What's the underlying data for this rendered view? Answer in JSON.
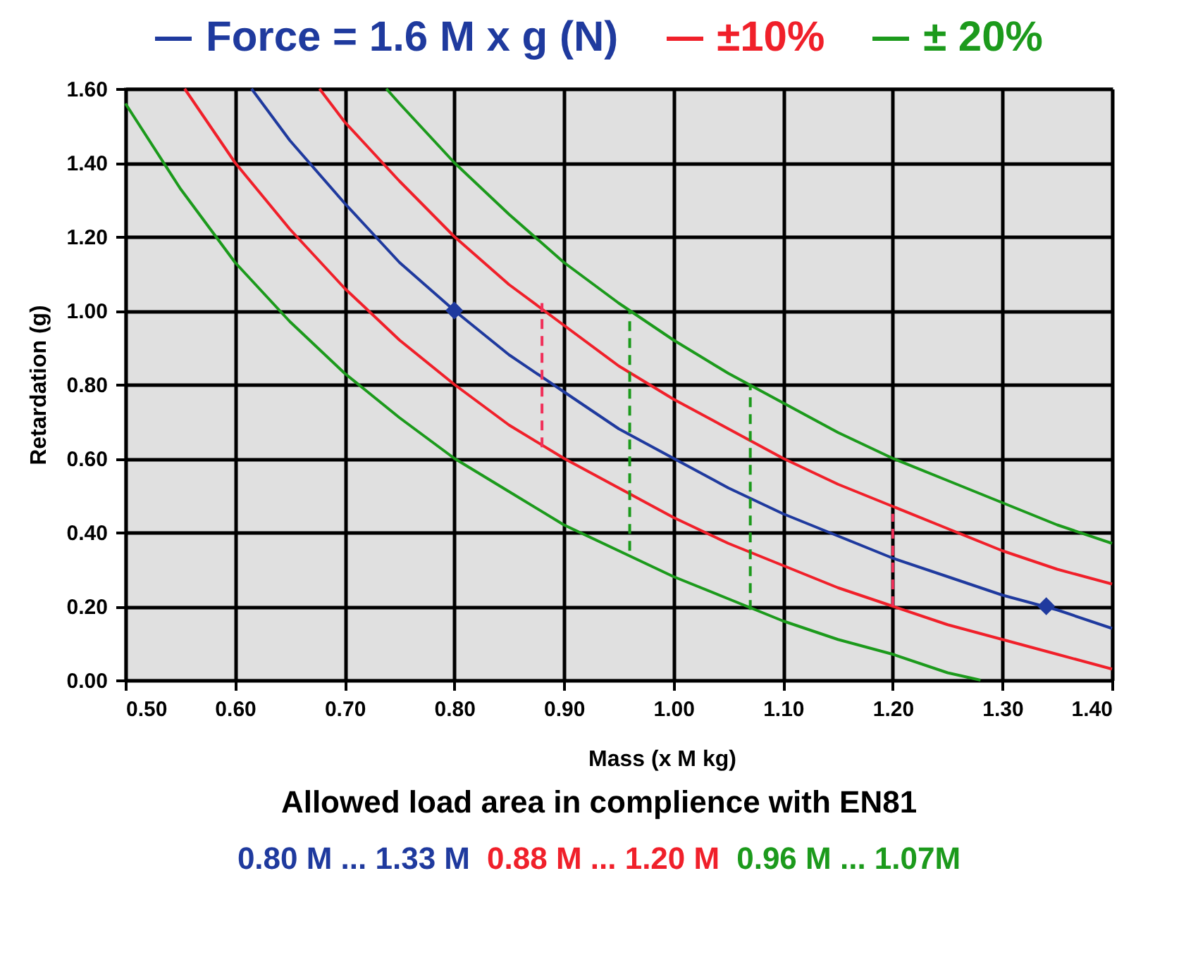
{
  "chart_data": {
    "type": "line",
    "xlabel": "Mass (x M kg)",
    "ylabel": "Retardation (g)",
    "xlim": [
      0.5,
      1.4
    ],
    "ylim": [
      0,
      1.6
    ],
    "xticks": [
      {
        "value": 0.5,
        "label": "0.50"
      },
      {
        "value": 0.6,
        "label": "0.60"
      },
      {
        "value": 0.7,
        "label": "0.70"
      },
      {
        "value": 0.8,
        "label": "0.80"
      },
      {
        "value": 0.9,
        "label": "0.90"
      },
      {
        "value": 1.0,
        "label": "1.00"
      },
      {
        "value": 1.1,
        "label": "1.10"
      },
      {
        "value": 1.2,
        "label": "1.20"
      },
      {
        "value": 1.3,
        "label": "1.30"
      },
      {
        "value": 1.4,
        "label": "1.40"
      }
    ],
    "yticks": [
      {
        "value": 0,
        "label": "0.00"
      },
      {
        "value": 0.2,
        "label": "0.20"
      },
      {
        "value": 0.4,
        "label": "0.40"
      },
      {
        "value": 0.6,
        "label": "0.60"
      },
      {
        "value": 0.8,
        "label": "0.80"
      },
      {
        "value": 1.0,
        "label": "1.00"
      },
      {
        "value": 1.2,
        "label": "1.20"
      },
      {
        "value": 1.4,
        "label": "1.40"
      },
      {
        "value": 1.6,
        "label": "1.60"
      }
    ],
    "grid": true,
    "legend": "top",
    "series": [
      {
        "name": "Force = 1.6 M x g (N)",
        "color": "#1f3a9e",
        "x": [
          0.615,
          0.65,
          0.7,
          0.75,
          0.8,
          0.85,
          0.9,
          0.95,
          1.0,
          1.05,
          1.1,
          1.15,
          1.2,
          1.25,
          1.3,
          1.35,
          1.4
        ],
        "values": [
          1.6,
          1.46,
          1.29,
          1.13,
          1.0,
          0.88,
          0.78,
          0.68,
          0.6,
          0.52,
          0.45,
          0.39,
          0.33,
          0.28,
          0.23,
          0.19,
          0.14
        ]
      },
      {
        "name": "±10%",
        "color": "#f0202a",
        "x": [
          0.677,
          0.7,
          0.75,
          0.8,
          0.85,
          0.9,
          0.95,
          1.0,
          1.05,
          1.1,
          1.15,
          1.2,
          1.25,
          1.3,
          1.35,
          1.4
        ],
        "values": [
          1.6,
          1.51,
          1.35,
          1.2,
          1.07,
          0.96,
          0.85,
          0.76,
          0.68,
          0.6,
          0.53,
          0.47,
          0.41,
          0.35,
          0.3,
          0.26
        ]
      },
      {
        "color": "#f0202a",
        "x": [
          0.554,
          0.6,
          0.65,
          0.7,
          0.75,
          0.8,
          0.85,
          0.9,
          0.95,
          1.0,
          1.05,
          1.1,
          1.15,
          1.2,
          1.25,
          1.3,
          1.35,
          1.4
        ],
        "values": [
          1.6,
          1.4,
          1.22,
          1.06,
          0.92,
          0.8,
          0.69,
          0.6,
          0.52,
          0.44,
          0.37,
          0.31,
          0.25,
          0.2,
          0.15,
          0.11,
          0.07,
          0.03
        ]
      },
      {
        "name": "± 20%",
        "color": "#1c9a1c",
        "x": [
          0.738,
          0.75,
          0.8,
          0.85,
          0.9,
          0.95,
          1.0,
          1.05,
          1.1,
          1.15,
          1.2,
          1.25,
          1.3,
          1.35,
          1.4
        ],
        "values": [
          1.6,
          1.56,
          1.4,
          1.26,
          1.13,
          1.02,
          0.92,
          0.83,
          0.75,
          0.67,
          0.6,
          0.54,
          0.48,
          0.42,
          0.37
        ]
      },
      {
        "color": "#1c9a1c",
        "x": [
          0.5,
          0.55,
          0.6,
          0.65,
          0.7,
          0.75,
          0.8,
          0.85,
          0.9,
          0.95,
          1.0,
          1.05,
          1.1,
          1.15,
          1.2,
          1.25,
          1.28
        ],
        "values": [
          1.56,
          1.33,
          1.13,
          0.97,
          0.83,
          0.71,
          0.6,
          0.51,
          0.42,
          0.35,
          0.28,
          0.22,
          0.16,
          0.11,
          0.07,
          0.02,
          0.0
        ]
      },
      {
        "color": "#f0305a",
        "line_style": "dashed",
        "x": [
          0.88,
          0.88
        ],
        "values": [
          0.63,
          1.02
        ]
      },
      {
        "color": "#1c9a1c",
        "line_style": "dashed",
        "x": [
          0.96,
          0.96
        ],
        "values": [
          0.35,
          1.0
        ]
      },
      {
        "color": "#1c9a1c",
        "line_style": "dashed",
        "x": [
          1.07,
          1.07
        ],
        "values": [
          0.19,
          0.8
        ]
      },
      {
        "color": "#f0305a",
        "line_style": "dashed",
        "x": [
          1.2,
          1.2
        ],
        "values": [
          0.2,
          0.45
        ]
      },
      {
        "color": "#1f3a9e",
        "type": "scatter",
        "marker": "diamond",
        "x": [
          0.8,
          1.34
        ],
        "values": [
          1.0,
          0.2
        ]
      }
    ],
    "annotations": [
      "Allowed load area in complience with EN81",
      "0.80 M ... 1.33 M",
      "0.88 M ... 1.20 M",
      "0.96 M ... 1.07M"
    ]
  }
}
